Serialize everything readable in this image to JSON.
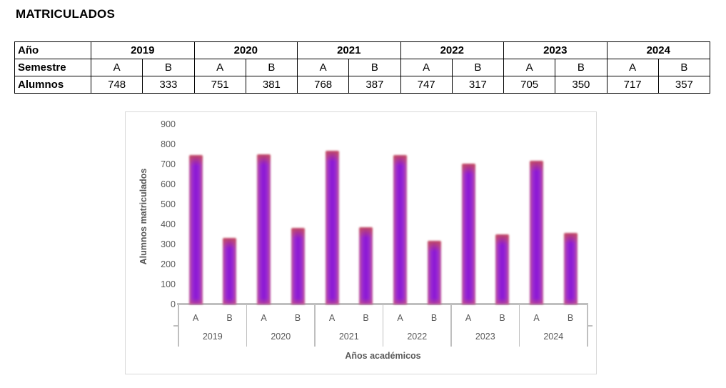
{
  "title": "MATRICULADOS",
  "table": {
    "row_headers": [
      "Año",
      "Semestre",
      "Alumnos"
    ],
    "years": [
      "2019",
      "2020",
      "2021",
      "2022",
      "2023",
      "2024"
    ],
    "semesters": [
      "A",
      "B",
      "A",
      "B",
      "A",
      "B",
      "A",
      "B",
      "A",
      "B",
      "A",
      "B"
    ],
    "alumnos": [
      "748",
      "333",
      "751",
      "381",
      "768",
      "387",
      "747",
      "317",
      "705",
      "350",
      "717",
      "357"
    ]
  },
  "chart_data": {
    "type": "bar",
    "title": "",
    "xlabel": "Años académicos",
    "ylabel": "Alumnos matriculados",
    "ylim": [
      0,
      900
    ],
    "yticks": [
      0,
      100,
      200,
      300,
      400,
      500,
      600,
      700,
      800,
      900
    ],
    "categories": [
      "2019",
      "2020",
      "2021",
      "2022",
      "2023",
      "2024"
    ],
    "series": [
      {
        "name": "A",
        "values": [
          748,
          751,
          768,
          747,
          705,
          717
        ]
      },
      {
        "name": "B",
        "values": [
          333,
          381,
          387,
          317,
          350,
          357
        ]
      }
    ],
    "grid": false,
    "legend": "none",
    "colors": {
      "bar_center": "#8a16d6",
      "bar_edge": "#c05a9a",
      "bar_top": "#c54b58",
      "axis_line": "#bfbfbf",
      "axis_text": "#595959",
      "frame_border": "#d9d9d9"
    }
  }
}
